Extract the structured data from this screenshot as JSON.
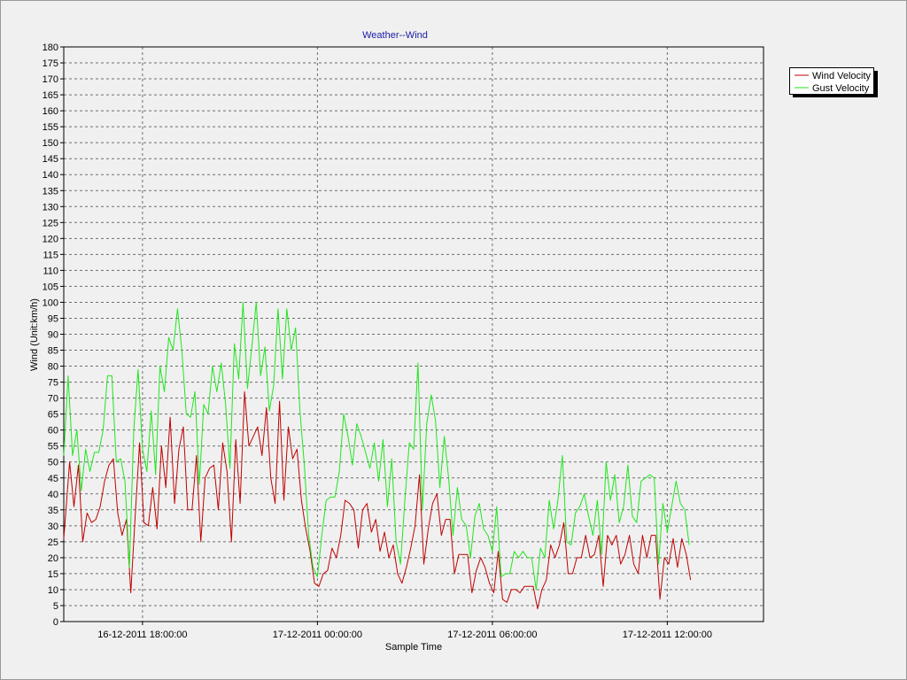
{
  "chart_data": {
    "type": "line",
    "title": "Weather--Wind",
    "xlabel": "Sample Time",
    "ylabel": "Wind (Unit:km/h)",
    "ylim": [
      0,
      180
    ],
    "y_ticks": [
      0,
      5,
      10,
      15,
      20,
      25,
      30,
      35,
      40,
      45,
      50,
      55,
      60,
      65,
      70,
      75,
      80,
      85,
      90,
      95,
      100,
      105,
      110,
      115,
      120,
      125,
      130,
      135,
      140,
      145,
      150,
      155,
      160,
      165,
      170,
      175,
      180
    ],
    "x_range_hours": [
      -2.7,
      21.3
    ],
    "x_ticks": [
      {
        "hour": 0,
        "label": "16-12-2011 18:00:00"
      },
      {
        "hour": 6,
        "label": "17-12-2011 00:00:00"
      },
      {
        "hour": 12,
        "label": "17-12-2011 06:00:00"
      },
      {
        "hour": 18,
        "label": "17-12-2011 12:00:00"
      }
    ],
    "grid": true,
    "legend_position": "top-right",
    "series": [
      {
        "name": "Wind Velocity",
        "color": "#c00000",
        "points": [
          [
            -2.7,
            26
          ],
          [
            -2.5,
            50
          ],
          [
            -2.35,
            36
          ],
          [
            -2.2,
            49
          ],
          [
            -2.05,
            25
          ],
          [
            -1.9,
            34
          ],
          [
            -1.75,
            31
          ],
          [
            -1.6,
            32
          ],
          [
            -1.45,
            36
          ],
          [
            -1.3,
            44
          ],
          [
            -1.15,
            49
          ],
          [
            -1.0,
            51
          ],
          [
            -0.85,
            34
          ],
          [
            -0.7,
            27
          ],
          [
            -0.55,
            32
          ],
          [
            -0.4,
            9
          ],
          [
            -0.25,
            33
          ],
          [
            -0.1,
            56
          ],
          [
            0.05,
            31
          ],
          [
            0.2,
            30
          ],
          [
            0.35,
            42
          ],
          [
            0.5,
            29
          ],
          [
            0.65,
            55
          ],
          [
            0.8,
            42
          ],
          [
            0.95,
            64
          ],
          [
            1.1,
            37
          ],
          [
            1.25,
            54
          ],
          [
            1.4,
            61
          ],
          [
            1.55,
            35
          ],
          [
            1.7,
            35
          ],
          [
            1.85,
            52
          ],
          [
            2.0,
            25
          ],
          [
            2.15,
            45
          ],
          [
            2.3,
            48
          ],
          [
            2.45,
            49
          ],
          [
            2.6,
            35
          ],
          [
            2.75,
            56
          ],
          [
            2.9,
            47
          ],
          [
            3.05,
            25
          ],
          [
            3.2,
            57
          ],
          [
            3.35,
            37
          ],
          [
            3.5,
            72
          ],
          [
            3.65,
            55
          ],
          [
            3.8,
            58
          ],
          [
            3.95,
            61
          ],
          [
            4.1,
            52
          ],
          [
            4.25,
            67
          ],
          [
            4.4,
            45
          ],
          [
            4.55,
            37
          ],
          [
            4.7,
            69
          ],
          [
            4.85,
            38
          ],
          [
            5.0,
            61
          ],
          [
            5.15,
            51
          ],
          [
            5.3,
            54
          ],
          [
            5.45,
            38
          ],
          [
            5.6,
            29
          ],
          [
            5.75,
            22
          ],
          [
            5.9,
            12
          ],
          [
            6.05,
            11
          ],
          [
            6.2,
            15
          ],
          [
            6.35,
            16
          ],
          [
            6.5,
            23
          ],
          [
            6.65,
            20
          ],
          [
            6.8,
            27
          ],
          [
            6.95,
            38
          ],
          [
            7.1,
            37
          ],
          [
            7.25,
            35
          ],
          [
            7.4,
            23
          ],
          [
            7.55,
            35
          ],
          [
            7.7,
            37
          ],
          [
            7.85,
            28
          ],
          [
            8.0,
            32
          ],
          [
            8.15,
            22
          ],
          [
            8.3,
            28
          ],
          [
            8.45,
            20
          ],
          [
            8.6,
            24
          ],
          [
            8.75,
            15
          ],
          [
            8.9,
            12
          ],
          [
            9.05,
            17
          ],
          [
            9.2,
            23
          ],
          [
            9.35,
            30
          ],
          [
            9.5,
            46
          ],
          [
            9.65,
            18
          ],
          [
            9.8,
            29
          ],
          [
            9.95,
            37
          ],
          [
            10.1,
            40
          ],
          [
            10.25,
            27
          ],
          [
            10.4,
            32
          ],
          [
            10.55,
            32
          ],
          [
            10.7,
            15
          ],
          [
            10.85,
            21
          ],
          [
            11.0,
            21
          ],
          [
            11.15,
            21
          ],
          [
            11.3,
            9
          ],
          [
            11.45,
            16
          ],
          [
            11.6,
            20
          ],
          [
            11.75,
            17
          ],
          [
            11.9,
            12
          ],
          [
            12.05,
            9
          ],
          [
            12.2,
            22
          ],
          [
            12.35,
            7
          ],
          [
            12.5,
            6
          ],
          [
            12.65,
            10
          ],
          [
            12.8,
            10
          ],
          [
            12.95,
            9
          ],
          [
            13.1,
            11
          ],
          [
            13.25,
            11
          ],
          [
            13.4,
            11
          ],
          [
            13.55,
            4
          ],
          [
            13.7,
            10
          ],
          [
            13.85,
            13
          ],
          [
            14.0,
            24
          ],
          [
            14.15,
            20
          ],
          [
            14.3,
            24
          ],
          [
            14.45,
            31
          ],
          [
            14.6,
            15
          ],
          [
            14.75,
            15
          ],
          [
            14.9,
            20
          ],
          [
            15.05,
            20
          ],
          [
            15.2,
            27
          ],
          [
            15.35,
            20
          ],
          [
            15.5,
            21
          ],
          [
            15.65,
            27
          ],
          [
            15.8,
            11
          ],
          [
            15.95,
            27
          ],
          [
            16.1,
            24
          ],
          [
            16.25,
            27
          ],
          [
            16.4,
            18
          ],
          [
            16.55,
            21
          ],
          [
            16.7,
            27
          ],
          [
            16.85,
            18
          ],
          [
            17.0,
            15
          ],
          [
            17.15,
            27
          ],
          [
            17.3,
            20
          ],
          [
            17.45,
            27
          ],
          [
            17.6,
            27
          ],
          [
            17.75,
            7
          ],
          [
            17.9,
            20
          ],
          [
            18.05,
            18
          ],
          [
            18.2,
            26
          ],
          [
            18.35,
            17
          ],
          [
            18.5,
            26
          ],
          [
            18.65,
            21
          ],
          [
            18.8,
            13
          ]
        ]
      },
      {
        "name": "Gust Velocity",
        "color": "#1ee61e",
        "points": [
          [
            -2.7,
            52
          ],
          [
            -2.55,
            77
          ],
          [
            -2.4,
            52
          ],
          [
            -2.25,
            60
          ],
          [
            -2.1,
            41
          ],
          [
            -1.95,
            54
          ],
          [
            -1.8,
            47
          ],
          [
            -1.65,
            53
          ],
          [
            -1.5,
            53
          ],
          [
            -1.35,
            60
          ],
          [
            -1.2,
            77
          ],
          [
            -1.05,
            77
          ],
          [
            -0.9,
            50
          ],
          [
            -0.75,
            51
          ],
          [
            -0.6,
            44
          ],
          [
            -0.45,
            17
          ],
          [
            -0.3,
            60
          ],
          [
            -0.15,
            79
          ],
          [
            0.0,
            54
          ],
          [
            0.15,
            47
          ],
          [
            0.3,
            66
          ],
          [
            0.45,
            46
          ],
          [
            0.6,
            80
          ],
          [
            0.75,
            72
          ],
          [
            0.9,
            89
          ],
          [
            1.05,
            85
          ],
          [
            1.2,
            98
          ],
          [
            1.35,
            85
          ],
          [
            1.5,
            65
          ],
          [
            1.65,
            64
          ],
          [
            1.8,
            72
          ],
          [
            1.95,
            43
          ],
          [
            2.1,
            68
          ],
          [
            2.25,
            65
          ],
          [
            2.4,
            80
          ],
          [
            2.55,
            72
          ],
          [
            2.7,
            81
          ],
          [
            2.85,
            68
          ],
          [
            3.0,
            48
          ],
          [
            3.15,
            87
          ],
          [
            3.3,
            76
          ],
          [
            3.45,
            100
          ],
          [
            3.6,
            73
          ],
          [
            3.75,
            86
          ],
          [
            3.9,
            100
          ],
          [
            4.05,
            77
          ],
          [
            4.2,
            86
          ],
          [
            4.35,
            66
          ],
          [
            4.5,
            74
          ],
          [
            4.65,
            98
          ],
          [
            4.8,
            76
          ],
          [
            4.95,
            98
          ],
          [
            5.1,
            85
          ],
          [
            5.25,
            92
          ],
          [
            5.4,
            66
          ],
          [
            5.55,
            49
          ],
          [
            5.7,
            27
          ],
          [
            5.85,
            17
          ],
          [
            6.0,
            14
          ],
          [
            6.15,
            27
          ],
          [
            6.3,
            38
          ],
          [
            6.45,
            39
          ],
          [
            6.6,
            39
          ],
          [
            6.75,
            47
          ],
          [
            6.9,
            65
          ],
          [
            7.05,
            58
          ],
          [
            7.2,
            49
          ],
          [
            7.35,
            62
          ],
          [
            7.5,
            58
          ],
          [
            7.65,
            53
          ],
          [
            7.8,
            48
          ],
          [
            7.95,
            56
          ],
          [
            8.1,
            44
          ],
          [
            8.25,
            57
          ],
          [
            8.4,
            36
          ],
          [
            8.55,
            51
          ],
          [
            8.7,
            25
          ],
          [
            8.85,
            18
          ],
          [
            9.0,
            38
          ],
          [
            9.15,
            56
          ],
          [
            9.3,
            54
          ],
          [
            9.45,
            81
          ],
          [
            9.6,
            35
          ],
          [
            9.75,
            62
          ],
          [
            9.9,
            71
          ],
          [
            10.05,
            63
          ],
          [
            10.2,
            42
          ],
          [
            10.35,
            58
          ],
          [
            10.5,
            45
          ],
          [
            10.65,
            27
          ],
          [
            10.8,
            42
          ],
          [
            10.95,
            32
          ],
          [
            11.1,
            30
          ],
          [
            11.25,
            20
          ],
          [
            11.4,
            33
          ],
          [
            11.55,
            37
          ],
          [
            11.7,
            29
          ],
          [
            11.85,
            27
          ],
          [
            12.0,
            22
          ],
          [
            12.15,
            36
          ],
          [
            12.3,
            14
          ],
          [
            12.45,
            15
          ],
          [
            12.6,
            15
          ],
          [
            12.75,
            22
          ],
          [
            12.9,
            20
          ],
          [
            13.05,
            22
          ],
          [
            13.2,
            20
          ],
          [
            13.35,
            20
          ],
          [
            13.5,
            10
          ],
          [
            13.65,
            23
          ],
          [
            13.8,
            20
          ],
          [
            13.95,
            38
          ],
          [
            14.1,
            29
          ],
          [
            14.25,
            38
          ],
          [
            14.4,
            52
          ],
          [
            14.55,
            25
          ],
          [
            14.7,
            24
          ],
          [
            14.85,
            34
          ],
          [
            15.0,
            36
          ],
          [
            15.15,
            40
          ],
          [
            15.3,
            33
          ],
          [
            15.45,
            27
          ],
          [
            15.6,
            38
          ],
          [
            15.75,
            21
          ],
          [
            15.9,
            50
          ],
          [
            16.05,
            38
          ],
          [
            16.2,
            46
          ],
          [
            16.35,
            31
          ],
          [
            16.5,
            36
          ],
          [
            16.65,
            49
          ],
          [
            16.8,
            33
          ],
          [
            16.95,
            31
          ],
          [
            17.1,
            44
          ],
          [
            17.25,
            45
          ],
          [
            17.4,
            46
          ],
          [
            17.55,
            45
          ],
          [
            17.7,
            18
          ],
          [
            17.85,
            37
          ],
          [
            18.0,
            28
          ],
          [
            18.15,
            36
          ],
          [
            18.3,
            44
          ],
          [
            18.45,
            37
          ],
          [
            18.6,
            35
          ],
          [
            18.75,
            24
          ]
        ]
      }
    ]
  }
}
